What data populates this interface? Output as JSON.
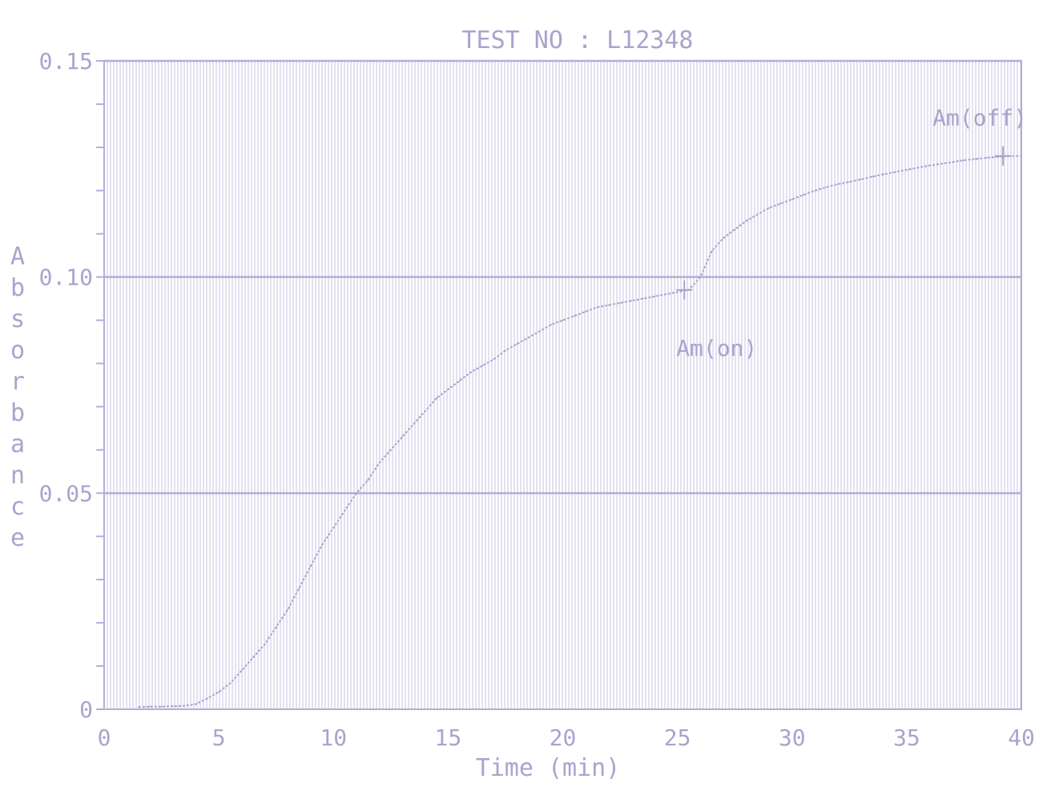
{
  "colors": {
    "ink": "#a9a4cd",
    "grid": "#c7c3e1",
    "major": "#b3aed6",
    "background": "#ffffff"
  },
  "chart_data": {
    "type": "line",
    "title": "TEST NO : L12348",
    "xlabel": "Time (min)",
    "ylabel": "Absorbance",
    "xlim": [
      0,
      40
    ],
    "ylim": [
      0,
      0.15
    ],
    "x_ticks": [
      0,
      5,
      10,
      15,
      20,
      25,
      30,
      35,
      40
    ],
    "x_tick_labels": [
      "0",
      "5",
      "10",
      "15",
      "20",
      "25",
      "30",
      "35",
      "40"
    ],
    "y_ticks": [
      0,
      0.05,
      0.1,
      0.15
    ],
    "y_tick_labels": [
      "0",
      "0.05",
      "0.10",
      "0.15"
    ],
    "grid": true,
    "series": [
      {
        "x": [
          1.5,
          2,
          2.5,
          3,
          3.5,
          4,
          4.5,
          5,
          5.5,
          6,
          6.5,
          7,
          7.5,
          8,
          8.5,
          9,
          9.5,
          10,
          10.5,
          11,
          11.5,
          12,
          12.5,
          13,
          13.5,
          14,
          14.5,
          15,
          15.5,
          16,
          16.5,
          17,
          17.5,
          18,
          18.5,
          19,
          19.5,
          20,
          20.5,
          21,
          21.5,
          22,
          22.5,
          23,
          23.5,
          24,
          24.5,
          25,
          25.5,
          26,
          26.5,
          27,
          27.5,
          28,
          28.5,
          29,
          29.5,
          30,
          30.5,
          31,
          31.5,
          32,
          32.5,
          33,
          33.5,
          34,
          34.5,
          35,
          35.5,
          36,
          36.5,
          37,
          37.5,
          38,
          38.5,
          39,
          39.5,
          40
        ],
        "y": [
          0.0005,
          0.0006,
          0.0006,
          0.0007,
          0.0008,
          0.0012,
          0.0025,
          0.004,
          0.006,
          0.009,
          0.012,
          0.015,
          0.019,
          0.023,
          0.028,
          0.033,
          0.038,
          0.042,
          0.046,
          0.05,
          0.053,
          0.057,
          0.06,
          0.063,
          0.066,
          0.069,
          0.072,
          0.074,
          0.076,
          0.078,
          0.0795,
          0.081,
          0.083,
          0.0845,
          0.086,
          0.0875,
          0.089,
          0.09,
          0.091,
          0.092,
          0.093,
          0.0935,
          0.094,
          0.0945,
          0.095,
          0.0955,
          0.096,
          0.0965,
          0.097,
          0.1,
          0.106,
          0.109,
          0.111,
          0.113,
          0.1145,
          0.116,
          0.117,
          0.118,
          0.119,
          0.12,
          0.1208,
          0.1215,
          0.122,
          0.1226,
          0.1232,
          0.1238,
          0.1243,
          0.1248,
          0.1253,
          0.1258,
          0.1262,
          0.1266,
          0.127,
          0.1273,
          0.1276,
          0.1278,
          0.128,
          0.128
        ]
      }
    ],
    "markers": [
      {
        "label": "Am(on)",
        "x": 25.3,
        "y": 0.097
      },
      {
        "label": "Am(off)",
        "x": 39.2,
        "y": 0.128
      }
    ]
  }
}
